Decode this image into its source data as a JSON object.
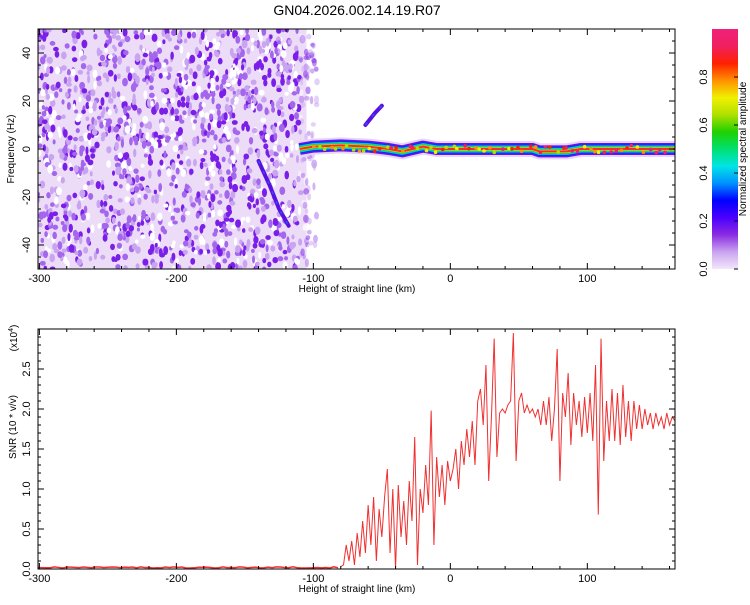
{
  "title": "GN04.2026.002.14.19.R07",
  "chart_data": [
    {
      "type": "heatmap",
      "title": "GN04.2026.002.14.19.R07",
      "xlabel": "Height of straight line (km)",
      "ylabel": "Frequency (Hz)",
      "xlim": [
        -301,
        164
      ],
      "ylim": [
        -50,
        50
      ],
      "xticks": [
        "-300",
        "-200",
        "-100",
        "0",
        "100"
      ],
      "xtick_values": [
        -300,
        -200,
        -100,
        0,
        100
      ],
      "yticks": [
        "-40",
        "-20",
        "0",
        "20",
        "40"
      ],
      "ytick_values": [
        -40,
        -20,
        0,
        20,
        40
      ],
      "colorbar": {
        "label": "Normalized spectral amplitude",
        "range": [
          0,
          1
        ],
        "ticks": [
          "0.0",
          "0.2",
          "0.4",
          "0.6",
          "0.8"
        ],
        "tick_values": [
          0,
          0.2,
          0.4,
          0.6,
          0.8
        ],
        "colors": [
          "#f3e6fb",
          "#c9a4f0",
          "#8b2be2",
          "#4b00ff",
          "#0000ff",
          "#0090ff",
          "#00e5e5",
          "#00e070",
          "#20d000",
          "#b0e000",
          "#f0f000",
          "#ff9000",
          "#ff2000",
          "#f02060",
          "#f0207a"
        ]
      },
      "noise_region": {
        "x_range": [
          -301,
          -105
        ],
        "freq_range": [
          -50,
          50
        ],
        "amplitude": 0.1
      },
      "ridge": {
        "points": [
          [
            -110,
            0
          ],
          [
            -100,
            1
          ],
          [
            -80,
            1.5
          ],
          [
            -60,
            1
          ],
          [
            -45,
            0
          ],
          [
            -35,
            -1
          ],
          [
            -20,
            1
          ],
          [
            -10,
            0
          ],
          [
            0,
            0
          ],
          [
            60,
            0
          ],
          [
            65,
            -1
          ],
          [
            85,
            -1
          ],
          [
            95,
            0
          ],
          [
            164,
            0
          ]
        ],
        "peak_amplitude": 0.95
      },
      "chirps": [
        {
          "points": [
            [
              -140,
              -5
            ],
            [
              -132,
              -15
            ],
            [
              -125,
              -25
            ],
            [
              -118,
              -32
            ]
          ],
          "amplitude": 0.2
        },
        {
          "points": [
            [
              -62,
              10
            ],
            [
              -55,
              15
            ],
            [
              -50,
              18
            ]
          ],
          "amplitude": 0.12
        }
      ]
    },
    {
      "type": "line",
      "xlabel": "Height of straight line (km)",
      "ylabel": "SNR (10 * v/v)",
      "y_multiplier": "(x10",
      "y_multiplier_exp": "4",
      "y_multiplier_close": ")",
      "xlim": [
        -301,
        164
      ],
      "ylim": [
        0,
        3
      ],
      "xticks": [
        "-300",
        "-200",
        "-100",
        "0",
        "100"
      ],
      "xtick_values": [
        -300,
        -200,
        -100,
        0,
        100
      ],
      "yticks": [
        "0.0",
        "0.5",
        "1.0",
        "1.5",
        "2.0",
        "2.5"
      ],
      "ytick_values": [
        0,
        0.5,
        1.0,
        1.5,
        2.0,
        2.5
      ],
      "color": "#f03030",
      "baseline": {
        "x_range": [
          -301,
          -80
        ],
        "value": 0.02
      },
      "series": [
        {
          "name": "SNR",
          "x_start": -80,
          "x_step": 2,
          "values": [
            0.03,
            0.05,
            0.3,
            0.1,
            0.35,
            0.05,
            0.45,
            0.15,
            0.6,
            0.2,
            0.8,
            0.3,
            0.9,
            0.1,
            0.75,
            0.4,
            0.9,
            1.25,
            0.2,
            1.0,
            0.0,
            1.05,
            0.4,
            0.85,
            0.3,
            1.1,
            0.6,
            1.65,
            0.05,
            1.0,
            0.7,
            1.3,
            0.8,
            1.98,
            0.3,
            1.4,
            0.9,
            1.3,
            0.8,
            1.35,
            1.1,
            1.25,
            1.5,
            1.0,
            1.6,
            1.3,
            1.75,
            1.4,
            1.85,
            1.3,
            2.1,
            2.25,
            1.8,
            2.55,
            1.1,
            1.9,
            2.88,
            1.4,
            1.95,
            2.0,
            1.95,
            2.05,
            2.1,
            2.95,
            1.35,
            2.1,
            2.2,
            1.95,
            2.05,
            1.95,
            2.0,
            1.9,
            2.0,
            1.8,
            2.1,
            1.8,
            2.15,
            1.6,
            2.0,
            2.75,
            1.1,
            2.2,
            1.9,
            2.45,
            1.55,
            2.2,
            1.8,
            2.1,
            1.65,
            2.15,
            1.7,
            2.2,
            1.6,
            2.55,
            0.68,
            2.88,
            1.35,
            2.1,
            1.6,
            2.25,
            1.6,
            2.2,
            1.55,
            2.3,
            1.65,
            2.1,
            1.6,
            2.1,
            1.75,
            2.05,
            1.75,
            2.0,
            1.8,
            1.95,
            1.75,
            1.95,
            1.8,
            1.9,
            1.75,
            1.95,
            1.8,
            1.9,
            1.85
          ]
        }
      ]
    }
  ]
}
